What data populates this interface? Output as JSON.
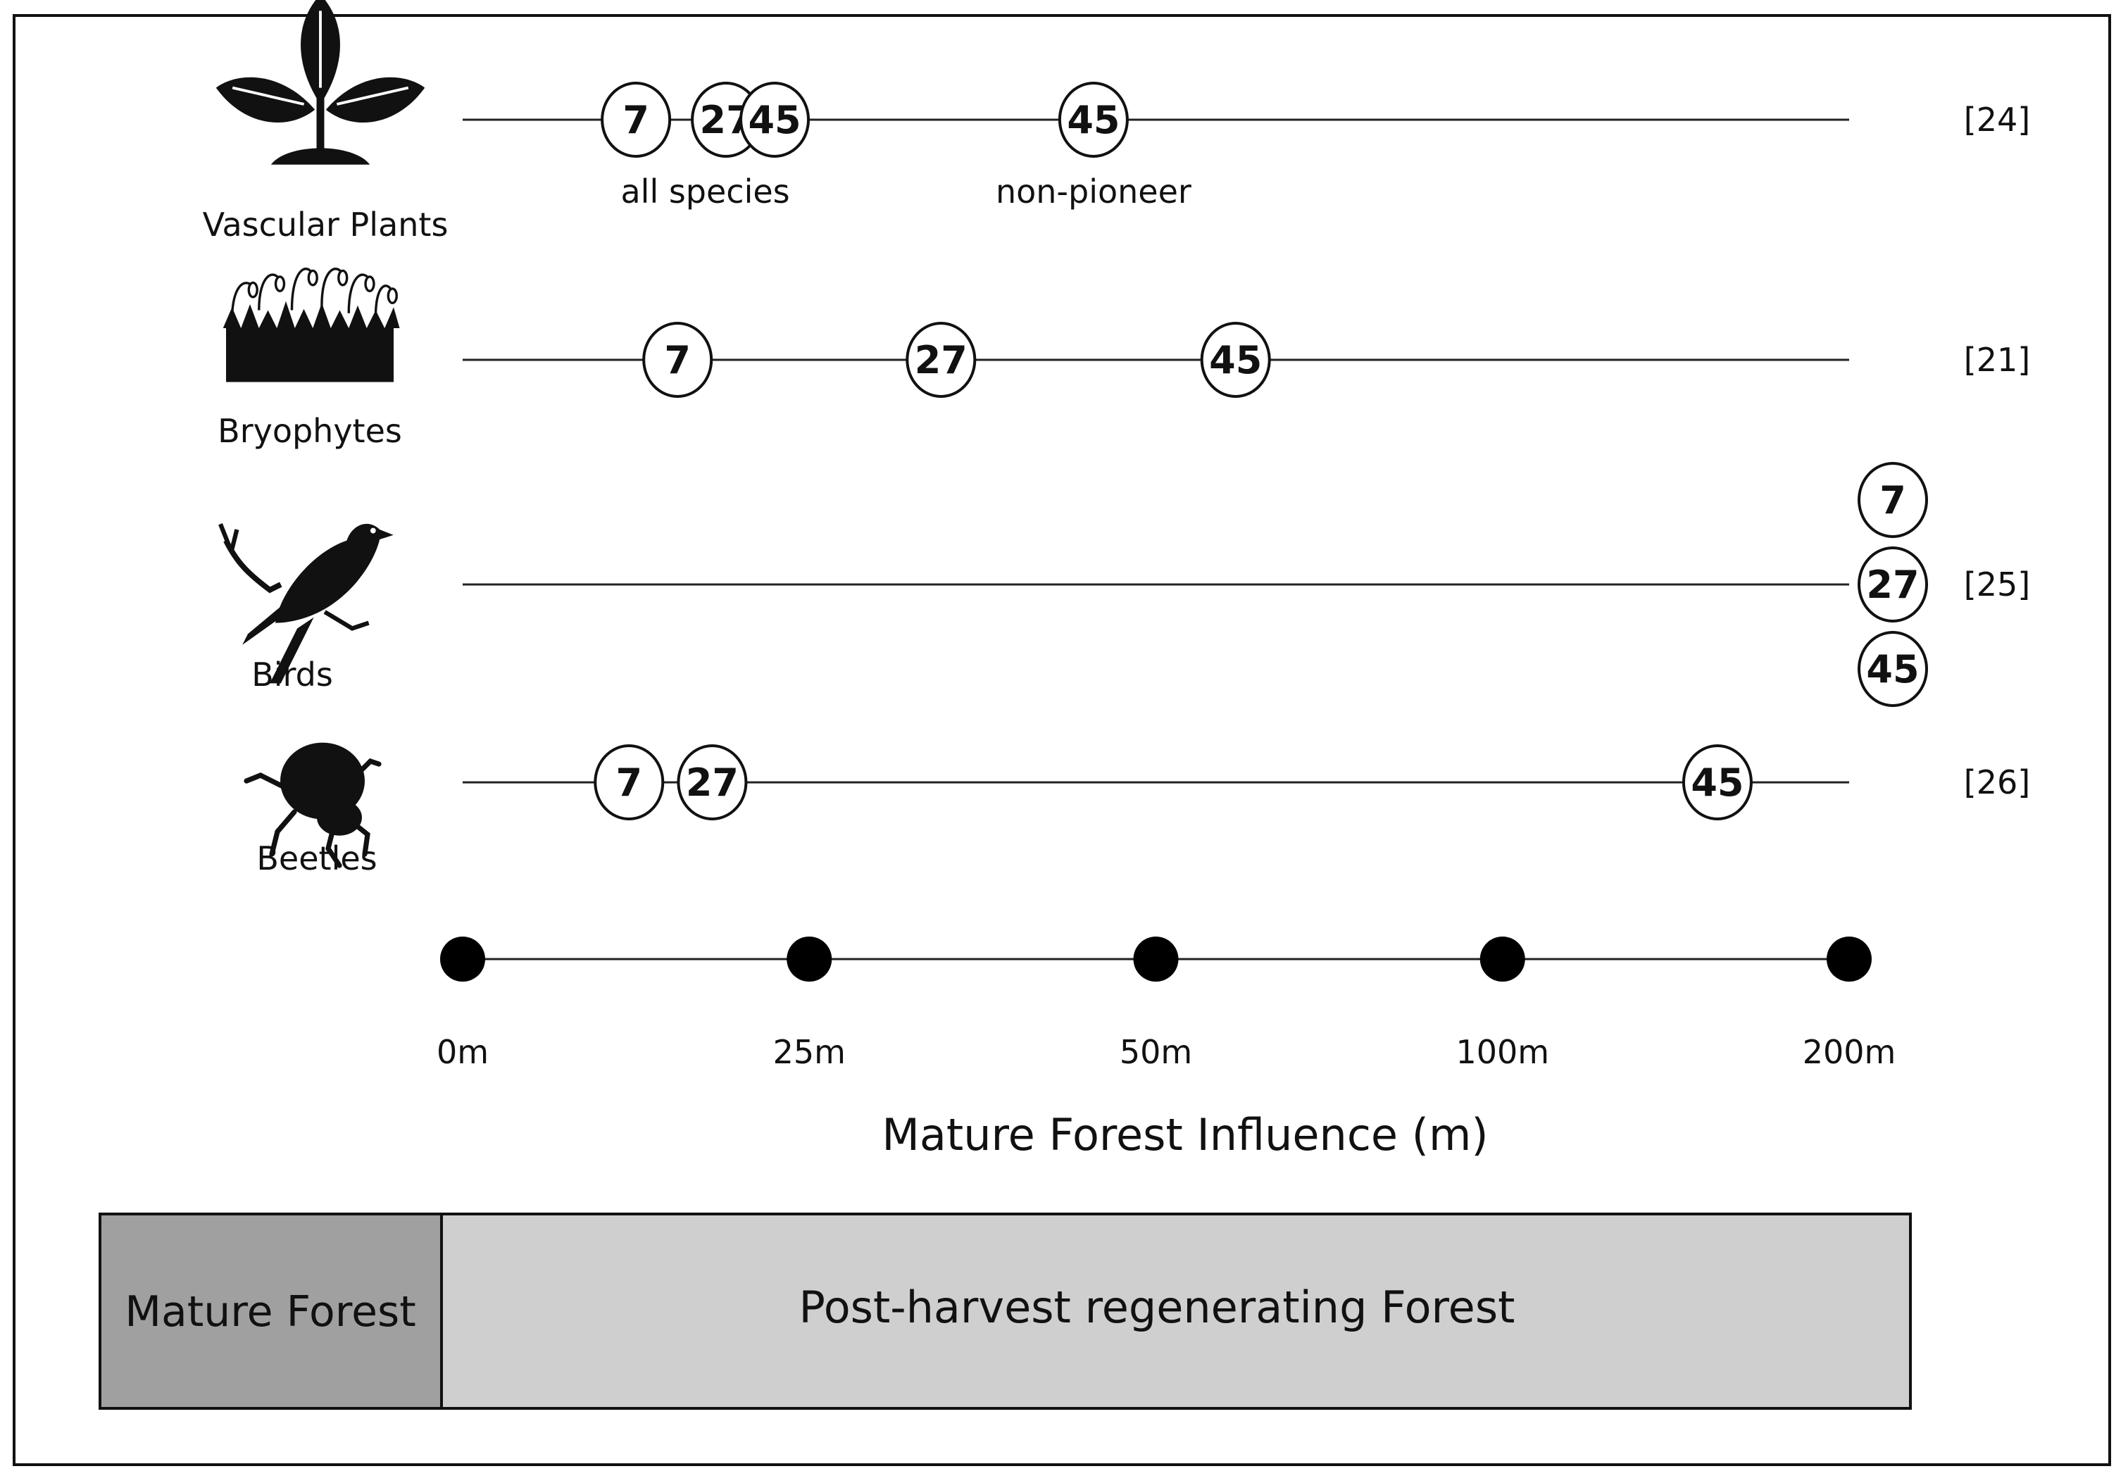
{
  "taxa": [
    {
      "name": "Vascular Plants",
      "icon": "plant-icon",
      "reference": "[24]",
      "markers": [
        {
          "label": "7",
          "position": 12.5
        },
        {
          "label": "27",
          "position": 19
        },
        {
          "label": "45",
          "position": 22.5
        },
        {
          "label": "45",
          "position": 45.5
        }
      ],
      "notes": [
        {
          "text": "all species",
          "position": 17.5
        },
        {
          "text": "non-pioneer",
          "position": 45.5
        }
      ]
    },
    {
      "name": "Bryophytes",
      "icon": "moss-icon",
      "reference": "[21]",
      "markers": [
        {
          "label": "7",
          "position": 15.5
        },
        {
          "label": "27",
          "position": 34.5
        },
        {
          "label": "45",
          "position": 61.5
        }
      ],
      "notes": []
    },
    {
      "name": "Birds",
      "icon": "bird-icon",
      "reference": "[25]",
      "markers": [
        {
          "label": "7",
          "position": 200,
          "stack": -1
        },
        {
          "label": "27",
          "position": 200,
          "stack": 0
        },
        {
          "label": "45",
          "position": 200,
          "stack": 1
        }
      ],
      "notes": []
    },
    {
      "name": "Beetles",
      "icon": "beetle-icon",
      "reference": "[26]",
      "markers": [
        {
          "label": "7",
          "position": 12
        },
        {
          "label": "27",
          "position": 18
        },
        {
          "label": "45",
          "position": 162
        }
      ],
      "notes": []
    }
  ],
  "scale": {
    "ticks": [
      "0m",
      "25m",
      "50m",
      "100m",
      "200m"
    ],
    "tick_values": [
      0,
      25,
      50,
      100,
      200
    ],
    "title": "Mature Forest Influence (m)"
  },
  "zones": {
    "mature": "Mature Forest",
    "regenerating": "Post-harvest regenerating Forest",
    "mature_color": "#a0a0a0",
    "regenerating_color": "#cfcfcf"
  }
}
